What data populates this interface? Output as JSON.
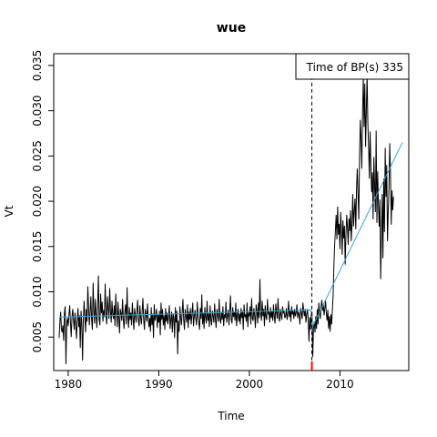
{
  "chart_data": {
    "type": "line",
    "title": "wue",
    "xlabel": "Time",
    "ylabel": "Vt",
    "xlim": [
      1978.4,
      2017.6
    ],
    "ylim": [
      0.0013,
      0.0363
    ],
    "x_ticks": [
      1980,
      1990,
      2000,
      2010
    ],
    "y_ticks": [
      0.005,
      0.01,
      0.015,
      0.02,
      0.025,
      0.03,
      0.035
    ],
    "x_tick_labels": [
      "1980",
      "1990",
      "2000",
      "2010"
    ],
    "y_tick_labels": [
      "0.005",
      "0.010",
      "0.015",
      "0.020",
      "0.025",
      "0.030",
      "0.035"
    ],
    "grid": false,
    "legend": {
      "position": "top-right",
      "text": "Time of BP(s) 335"
    },
    "breakpoint": {
      "x": 2006.9,
      "color": "#ff0000"
    },
    "series": [
      {
        "color": "#000000",
        "x_start": 1979.0,
        "x_step": 0.08333,
        "values": [
          0.0049,
          0.0067,
          0.0078,
          0.0059,
          0.0055,
          0.0063,
          0.0046,
          0.0077,
          0.0084,
          0.002,
          0.0065,
          0.0071,
          0.0062,
          0.0074,
          0.0085,
          0.0066,
          0.005,
          0.0072,
          0.0081,
          0.0069,
          0.0058,
          0.0077,
          0.0063,
          0.0048,
          0.007,
          0.0082,
          0.0061,
          0.0074,
          0.0038,
          0.0079,
          0.0065,
          0.0024,
          0.0068,
          0.009,
          0.0072,
          0.0055,
          0.0081,
          0.0067,
          0.0106,
          0.0083,
          0.0063,
          0.0077,
          0.0095,
          0.007,
          0.0058,
          0.011,
          0.0079,
          0.0065,
          0.0092,
          0.0074,
          0.006,
          0.0085,
          0.0118,
          0.007,
          0.0063,
          0.0098,
          0.0076,
          0.0089,
          0.0067,
          0.008,
          0.0072,
          0.0109,
          0.0074,
          0.0064,
          0.0095,
          0.0081,
          0.007,
          0.0104,
          0.0079,
          0.0066,
          0.009,
          0.0075,
          0.007,
          0.0085,
          0.0062,
          0.0098,
          0.0077,
          0.0061,
          0.0089,
          0.0072,
          0.0054,
          0.0081,
          0.0076,
          0.0068,
          0.0092,
          0.007,
          0.0059,
          0.0078,
          0.0086,
          0.0064,
          0.0105,
          0.0072,
          0.006,
          0.0083,
          0.0069,
          0.0077,
          0.0063,
          0.0088,
          0.0071,
          0.0058,
          0.0082,
          0.0074,
          0.0066,
          0.0079,
          0.0091,
          0.0068,
          0.0062,
          0.0085,
          0.0072,
          0.0064,
          0.0078,
          0.0093,
          0.0069,
          0.0058,
          0.0081,
          0.0075,
          0.0067,
          0.0087,
          0.0072,
          0.0061,
          0.0071,
          0.0056,
          0.0083,
          0.0063,
          0.0076,
          0.0049,
          0.0086,
          0.0068,
          0.0073,
          0.0081,
          0.006,
          0.0075,
          0.0066,
          0.0079,
          0.0052,
          0.0088,
          0.0069,
          0.0081,
          0.0063,
          0.0074,
          0.0058,
          0.0082,
          0.0067,
          0.0077,
          0.0064,
          0.0073,
          0.0085,
          0.0059,
          0.0069,
          0.0078,
          0.0055,
          0.0076,
          0.0071,
          0.0049,
          0.0083,
          0.0066,
          0.0079,
          0.0031,
          0.0068,
          0.0056,
          0.0084,
          0.0072,
          0.0063,
          0.0077,
          0.0092,
          0.0069,
          0.0058,
          0.0081,
          0.0073,
          0.0066,
          0.0086,
          0.006,
          0.0078,
          0.0069,
          0.0082,
          0.0064,
          0.0075,
          0.0088,
          0.0062,
          0.0073,
          0.008,
          0.0071,
          0.0063,
          0.0089,
          0.0074,
          0.0066,
          0.0058,
          0.0082,
          0.007,
          0.0097,
          0.0064,
          0.0077,
          0.0059,
          0.0083,
          0.0072,
          0.0065,
          0.009,
          0.0068,
          0.0076,
          0.0061,
          0.0085,
          0.007,
          0.0063,
          0.0079,
          0.0073,
          0.0066,
          0.0087,
          0.007,
          0.006,
          0.0081,
          0.0074,
          0.0067,
          0.0092,
          0.0071,
          0.0065,
          0.0078,
          0.0069,
          0.0084,
          0.0062,
          0.0075,
          0.0071,
          0.0089,
          0.0066,
          0.0074,
          0.008,
          0.0063,
          0.0078,
          0.0096,
          0.007,
          0.0065,
          0.0083,
          0.0072,
          0.0078,
          0.0068,
          0.0088,
          0.0062,
          0.0074,
          0.0081,
          0.0067,
          0.0076,
          0.0064,
          0.0082,
          0.0071,
          0.0079,
          0.0058,
          0.0086,
          0.0072,
          0.0075,
          0.0067,
          0.0088,
          0.0061,
          0.0077,
          0.0073,
          0.0084,
          0.0064,
          0.0093,
          0.0071,
          0.0068,
          0.0082,
          0.0074,
          0.006,
          0.0086,
          0.0079,
          0.0065,
          0.0088,
          0.0071,
          0.0114,
          0.0076,
          0.0068,
          0.009,
          0.0073,
          0.0081,
          0.0062,
          0.0085,
          0.0072,
          0.0069,
          0.0092,
          0.0075,
          0.0078,
          0.0066,
          0.0083,
          0.0071,
          0.0079,
          0.0068,
          0.0086,
          0.0073,
          0.0065,
          0.0087,
          0.0077,
          0.007,
          0.0093,
          0.0072,
          0.0067,
          0.0081,
          0.0075,
          0.0069,
          0.0084,
          0.0077,
          0.0079,
          0.0071,
          0.0073,
          0.0082,
          0.0069,
          0.0076,
          0.009,
          0.0072,
          0.008,
          0.0067,
          0.0084,
          0.0075,
          0.0079,
          0.007,
          0.0081,
          0.0073,
          0.0077,
          0.0086,
          0.0071,
          0.0078,
          0.0074,
          0.0064,
          0.0082,
          0.0076,
          0.007,
          0.0088,
          0.0079,
          0.0073,
          0.0081,
          0.0066,
          0.0075,
          0.0081,
          0.0068,
          0.0045,
          0.0072,
          0.0058,
          0.0076,
          0.0078,
          0.0028,
          0.006,
          0.0067,
          0.0055,
          0.0073,
          0.0059,
          0.0081,
          0.0064,
          0.0088,
          0.0077,
          0.007,
          0.0084,
          0.0091,
          0.0079,
          0.0086,
          0.0074,
          0.0082,
          0.009,
          0.0076,
          0.0068,
          0.008,
          0.0059,
          0.0073,
          0.0056,
          0.0075,
          0.0064,
          0.008,
          0.0096,
          0.0128,
          0.0152,
          0.0167,
          0.0185,
          0.0158,
          0.0194,
          0.0163,
          0.0175,
          0.0147,
          0.0188,
          0.0169,
          0.0141,
          0.0179,
          0.0159,
          0.0173,
          0.013,
          0.0164,
          0.0185,
          0.017,
          0.0152,
          0.0181,
          0.0167,
          0.019,
          0.0156,
          0.0174,
          0.0208,
          0.0172,
          0.0189,
          0.0203,
          0.0169,
          0.0213,
          0.0236,
          0.0208,
          0.018,
          0.025,
          0.029,
          0.0268,
          0.0236,
          0.03,
          0.0338,
          0.0282,
          0.033,
          0.026,
          0.03,
          0.034,
          0.0286,
          0.026,
          0.0225,
          0.0277,
          0.024,
          0.021,
          0.0232,
          0.018,
          0.0249,
          0.0216,
          0.0188,
          0.0278,
          0.0176,
          0.0233,
          0.0196,
          0.0172,
          0.0202,
          0.0114,
          0.016,
          0.0208,
          0.0137,
          0.0225,
          0.0166,
          0.0259,
          0.0205,
          0.024,
          0.0156,
          0.0188,
          0.0215,
          0.0264,
          0.023,
          0.0174,
          0.0212,
          0.019,
          0.0205
        ]
      },
      {
        "color": "#3ba3d0",
        "x": [
          1979.0,
          2006.8,
          2007.0,
          2016.9
        ],
        "values": [
          0.0072,
          0.008,
          0.0062,
          0.0265
        ]
      }
    ]
  }
}
